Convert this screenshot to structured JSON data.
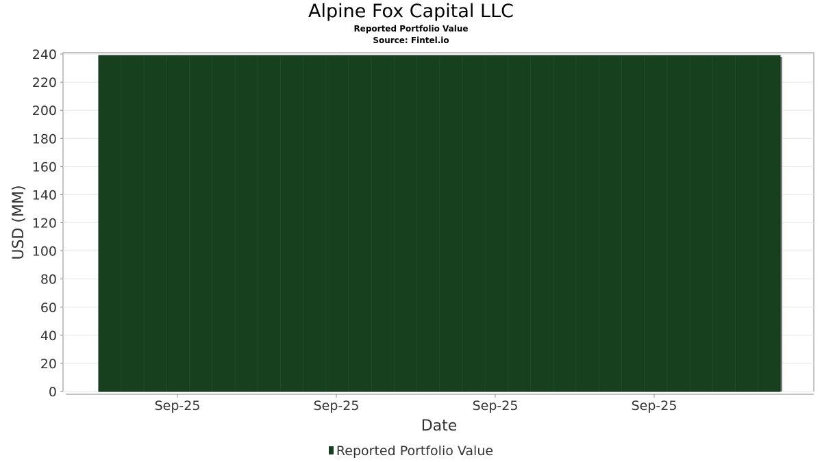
{
  "chart_data": {
    "type": "bar",
    "title": "Alpine Fox Capital LLC",
    "subtitle": "Reported Portfolio Value",
    "source": "Source: Fintel.io",
    "xlabel": "Date",
    "ylabel": "USD (MM)",
    "x_tick_labels": [
      "Sep-25",
      "Sep-25",
      "Sep-25",
      "Sep-25"
    ],
    "y_ticks": [
      0,
      20,
      40,
      60,
      80,
      100,
      120,
      140,
      160,
      180,
      200,
      220,
      240
    ],
    "ylim": [
      0,
      240
    ],
    "grid": true,
    "legend_position": "bottom",
    "series": [
      {
        "name": "Reported Portfolio Value",
        "values": [
          239
        ]
      }
    ],
    "colors": {
      "bar": "#17401f",
      "bar_shadow": "#7a7a7a",
      "grid": "#e6e6e6",
      "axis": "#888888"
    }
  }
}
